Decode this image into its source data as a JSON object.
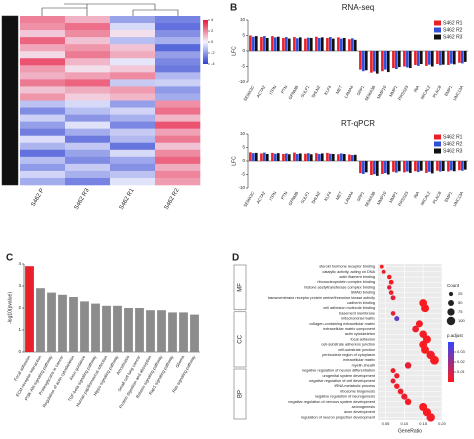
{
  "chart_data": [
    {
      "type": "heatmap",
      "columns": [
        "S462 P",
        "S462 R3",
        "S462 R1",
        "S462 R2"
      ],
      "values": [
        [
          2.1,
          1.2,
          -1.8,
          -2.5
        ],
        [
          1.8,
          2.4,
          -0.6,
          -2.9
        ],
        [
          0.8,
          1.9,
          0.4,
          -2.2
        ],
        [
          2.6,
          0.9,
          -1.2,
          -1.5
        ],
        [
          1.4,
          1.7,
          0.9,
          -3.1
        ],
        [
          0.5,
          2.2,
          1.3,
          -1.9
        ],
        [
          2.9,
          1.1,
          -0.3,
          -2.4
        ],
        [
          1.6,
          0.4,
          0.8,
          -2.7
        ],
        [
          1.2,
          1.5,
          1.9,
          -1.3
        ],
        [
          2.2,
          2.6,
          -0.9,
          -0.8
        ],
        [
          0.9,
          1.3,
          1.6,
          -2.0
        ],
        [
          1.7,
          0.7,
          1.1,
          -1.6
        ],
        [
          -1.1,
          -0.6,
          -1.9,
          1.8
        ],
        [
          -2.3,
          -1.2,
          -0.7,
          2.4
        ],
        [
          -0.8,
          -2.1,
          -1.5,
          1.1
        ],
        [
          -1.9,
          -0.4,
          -2.4,
          2.9
        ],
        [
          -2.6,
          -1.6,
          -0.9,
          1.5
        ],
        [
          -0.5,
          -2.7,
          -1.3,
          2.2
        ],
        [
          -1.4,
          -1.0,
          -2.8,
          0.9
        ],
        [
          -2.9,
          -1.8,
          -0.6,
          1.9
        ],
        [
          -1.2,
          -2.3,
          -1.7,
          2.6
        ],
        [
          -2.0,
          -0.9,
          -2.2,
          1.3
        ],
        [
          -0.7,
          -1.5,
          -1.1,
          2.0
        ],
        [
          -1.6,
          -2.5,
          -0.4,
          1.6
        ]
      ],
      "zlim": [
        -4,
        4
      ],
      "zticks": [
        4,
        2,
        0,
        -2,
        -4
      ],
      "colors": [
        "#2a3fd0",
        "#f4f4ff",
        "#e8163a"
      ]
    },
    {
      "type": "bar",
      "panel": "B",
      "title": "RNA-seq",
      "ylabel": "LFC",
      "categories": [
        "SEMA3C",
        "ACTA2",
        "ITPN",
        "PTN",
        "GPNMB",
        "SULF1",
        "SHLN2",
        "KLF4",
        "MET",
        "LAMA4",
        "SPP1",
        "SEMA3B",
        "MMP10",
        "MMP1",
        "PRSS23",
        "INA",
        "MICAL2",
        "PLAC8",
        "EMP1",
        "UNC13A"
      ],
      "series": [
        {
          "name": "S462 R1",
          "color": "#e8202a",
          "values": [
            5.0,
            4.5,
            4.8,
            4.2,
            4.5,
            4.0,
            4.6,
            4.2,
            4.4,
            3.8,
            -6.0,
            -7.0,
            -6.5,
            -5.5,
            -5.0,
            -4.5,
            -4.8,
            -4.2,
            -4.5,
            -3.8
          ]
        },
        {
          "name": "S462 R2",
          "color": "#2f4fd6",
          "values": [
            4.6,
            4.8,
            4.4,
            4.5,
            4.1,
            4.3,
            4.2,
            4.5,
            4.0,
            4.1,
            -6.5,
            -6.6,
            -6.0,
            -5.8,
            -5.3,
            -4.8,
            -4.4,
            -4.6,
            -4.1,
            -4.0
          ]
        },
        {
          "name": "S462 R3",
          "color": "#111111",
          "values": [
            4.8,
            4.2,
            4.6,
            4.0,
            4.4,
            4.2,
            4.4,
            4.0,
            4.2,
            3.6,
            -6.2,
            -7.3,
            -6.8,
            -5.2,
            -5.5,
            -4.2,
            -5.0,
            -4.4,
            -4.3,
            -3.5
          ]
        }
      ],
      "ylim": [
        -10,
        10
      ],
      "yticks": [
        -10,
        -5,
        0,
        5,
        10
      ]
    },
    {
      "type": "bar",
      "title": "RT-qPCR",
      "ylabel": "LFC",
      "categories": [
        "SEMA3C",
        "ACTA2",
        "ITPN",
        "PTN",
        "GPNMB",
        "SULF1",
        "SHLN2",
        "KLF4",
        "MET",
        "LAMA4",
        "SPP1",
        "SEMA3B",
        "MMP10",
        "MMP1",
        "PRSS23",
        "INA",
        "MICAL2",
        "PLAC8",
        "EMP1",
        "UNC13A"
      ],
      "series": [
        {
          "name": "S462 R1",
          "color": "#e8202a",
          "values": [
            3.2,
            2.8,
            3.0,
            2.6,
            3.1,
            2.7,
            2.9,
            3.0,
            2.5,
            2.4,
            -4.5,
            -5.2,
            -4.8,
            -4.0,
            -4.2,
            -3.8,
            -4.4,
            -3.6,
            -3.9,
            -3.4
          ]
        },
        {
          "name": "S462 R2",
          "color": "#2f4fd6",
          "values": [
            2.9,
            3.1,
            2.7,
            2.8,
            2.6,
            2.9,
            2.6,
            2.7,
            2.8,
            2.2,
            -4.8,
            -4.9,
            -4.5,
            -4.3,
            -3.9,
            -4.1,
            -4.0,
            -3.9,
            -3.5,
            -3.6
          ]
        },
        {
          "name": "S462 R3",
          "color": "#111111",
          "values": [
            3.0,
            2.6,
            2.9,
            2.5,
            2.8,
            2.5,
            2.8,
            2.6,
            2.6,
            2.3,
            -4.2,
            -5.5,
            -5.0,
            -3.8,
            -4.4,
            -3.6,
            -4.6,
            -3.7,
            -3.8,
            -3.2
          ]
        }
      ],
      "ylim": [
        -10,
        10
      ],
      "yticks": [
        -10,
        -5,
        0,
        5,
        10
      ]
    },
    {
      "type": "bar",
      "panel": "C",
      "ylabel": "-log10(pvalue)",
      "categories": [
        "Focal adhesion",
        "ECM-receptor interaction",
        "PI3K-Akt signaling pathway",
        "Proteoglycans in cancer",
        "Regulation of actin cytoskeleton",
        "Axon guidance",
        "TGF-beta signaling pathway",
        "Human papillomavirus infection",
        "Hippo signaling pathway",
        "Amoebiasis",
        "Small cell lung cancer",
        "Protein digestion and absorption",
        "Relaxin signaling pathway",
        "Rap1 signaling pathway",
        "Glioma",
        "Ras signaling pathway"
      ],
      "values": [
        3.9,
        2.9,
        2.7,
        2.6,
        2.5,
        2.3,
        2.2,
        2.1,
        2.1,
        2.0,
        2.0,
        1.9,
        1.9,
        1.8,
        1.8,
        1.7
      ],
      "colors": [
        "#e8202a",
        "#8c8c8c",
        "#8c8c8c",
        "#8c8c8c",
        "#8c8c8c",
        "#8c8c8c",
        "#8c8c8c",
        "#8c8c8c",
        "#8c8c8c",
        "#8c8c8c",
        "#8c8c8c",
        "#8c8c8c",
        "#8c8c8c",
        "#8c8c8c",
        "#8c8c8c",
        "#8c8c8c"
      ],
      "ylim": [
        0,
        4
      ],
      "yticks": [
        0,
        1,
        2,
        3,
        4
      ]
    },
    {
      "type": "dot",
      "panel": "D",
      "xlabel": "GeneRatio",
      "groups": [
        {
          "name": "MF",
          "terms": [
            "steroid hormone receptor binding",
            "catalytic activity, acting on DNA",
            "actin filament binding",
            "ribonucleoprotein complex binding",
            "histone acetyltransferase complex binding",
            "SMAD binding",
            "transmembrane receptor protein serine/threonine kinase activity",
            "cadherin binding",
            "cell adhesion molecule binding"
          ],
          "ratio": [
            0.04,
            0.045,
            0.06,
            0.065,
            0.06,
            0.065,
            0.07,
            0.15,
            0.155
          ],
          "count": [
            20,
            22,
            30,
            32,
            28,
            30,
            34,
            85,
            90
          ],
          "padj": [
            0.002,
            0.004,
            0.003,
            0.002,
            0.005,
            0.003,
            0.006,
            0.001,
            0.001
          ]
        },
        {
          "name": "CC",
          "terms": [
            "basement membrane",
            "mitochondrial matrix",
            "collagen-containing extracellular matrix",
            "extracellular matrix component",
            "actin cytoskeleton",
            "focal adhesion",
            "cell-substrate adherens junction",
            "cell-substrate junction",
            "perinuclear region of cytoplasm",
            "extracellular matrix",
            "myelin sheath"
          ],
          "ratio": [
            0.07,
            0.08,
            0.14,
            0.13,
            0.15,
            0.16,
            0.15,
            0.155,
            0.17,
            0.18,
            0.11
          ],
          "count": [
            30,
            35,
            70,
            65,
            80,
            90,
            85,
            88,
            100,
            110,
            60
          ],
          "padj": [
            0.004,
            0.03,
            0.002,
            0.003,
            0.002,
            0.001,
            0.001,
            0.001,
            0.003,
            0.001,
            0.005
          ]
        },
        {
          "name": "BP",
          "terms": [
            "negative regulation of neuron differentiation",
            "urogenital system development",
            "negative regulation of cell development",
            "tRNA metabolic process",
            "ribosome biogenesis",
            "negative regulation of neurogenesis",
            "negative regulation of nervous system development",
            "axonogenesis",
            "axon development",
            "regulation of neuron projection development"
          ],
          "ratio": [
            0.07,
            0.08,
            0.07,
            0.08,
            0.09,
            0.1,
            0.11,
            0.15,
            0.16,
            0.17
          ],
          "count": [
            35,
            40,
            36,
            42,
            48,
            55,
            60,
            90,
            95,
            100
          ],
          "padj": [
            0.003,
            0.004,
            0.005,
            0.002,
            0.003,
            0.004,
            0.002,
            0.001,
            0.001,
            0.002
          ]
        }
      ],
      "xlim": [
        0.03,
        0.2
      ],
      "xticks": [
        0.05,
        {
          "value": 0.1,
          "label": "0.10"
        },
        0.15,
        {
          "value": 0.2,
          "label": "0.20"
        }
      ],
      "size_title": "Count",
      "sizes": [
        25,
        50,
        75,
        100
      ],
      "color_title": "p.adjust",
      "clim": [
        0,
        0.04
      ],
      "cticks": [
        0.01,
        0.02,
        0.03
      ],
      "colors": [
        "#ff1a1a",
        "#3344ff"
      ]
    }
  ]
}
